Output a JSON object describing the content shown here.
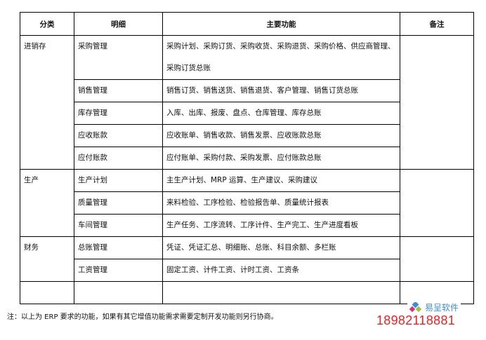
{
  "headers": [
    "分类",
    "明细",
    "主要功能",
    "备注"
  ],
  "groups": [
    {
      "category": "进销存",
      "rows": [
        {
          "detail": "采购管理",
          "functions": "采购计划、采购订货、采购收货、采购退货、采购价格、供应商管理、采购订货总账"
        },
        {
          "detail": "销售管理",
          "functions": "销售订货、销售送货、销售退货、客户管理、销售订货总账"
        },
        {
          "detail": "库存管理",
          "functions": "入库、出库、报废、盘点、仓库管理、库存总账"
        },
        {
          "detail": "应收账款",
          "functions": "应收账单、销售收款、销售发票、应收账款总账"
        },
        {
          "detail": "应付账款",
          "functions": "应付账单、采购付款、采购发票、应付账款总账"
        }
      ]
    },
    {
      "category": "生产",
      "rows": [
        {
          "detail": "生产计划",
          "functions": "主生产计划、MRP 运算、生产建议、采购建议"
        },
        {
          "detail": "质量管理",
          "functions": "来料检验、工序检验、检验报告单、质量统计报表"
        },
        {
          "detail": "车间管理",
          "functions": "生产任务、工序流转、工序计件、生产完工、生产进度看板"
        }
      ]
    },
    {
      "category": "财务",
      "rows": [
        {
          "detail": "总账管理",
          "functions": "凭证、凭证汇总、明细账、总账、科目余额、多栏账"
        },
        {
          "detail": "工资管理",
          "functions": "固定工资、计件工资、计时工资、工资条"
        }
      ]
    }
  ],
  "note": "注：以上为 ERP 要求的功能，如果有其它增值功能需求需要定制开发功能则另行协商。",
  "watermark": {
    "brand": "易呈软件",
    "phone": "18982118881",
    "phone_color": "#f02020",
    "brand_color": "#3b8fd9"
  }
}
